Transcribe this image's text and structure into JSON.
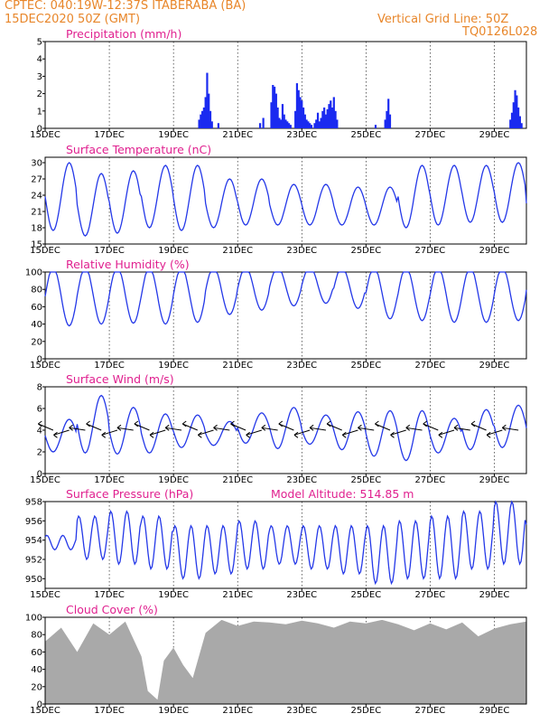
{
  "header": {
    "line1_left": "CPTEC:   040:19W-12:37S   ITABERABA (BA)",
    "line2_left": "15DEC2020  50Z (GMT)",
    "line2_right": "Vertical Grid Line: 50Z",
    "line3_right": "TQ0126L028"
  },
  "colors": {
    "series": "#2438e8",
    "precip": "#1a2af0",
    "cloud": "#a9a9a9",
    "title": "#e0208f",
    "header": "#e8862a"
  },
  "chart_data": [
    {
      "type": "bar",
      "id": "precip",
      "title": "Precipitation (mm/h)",
      "x_labels": [
        "15DEC",
        "17DEC",
        "19DEC",
        "21DEC",
        "23DEC",
        "25DEC",
        "27DEC",
        "29DEC"
      ],
      "x_range_days": [
        0,
        15
      ],
      "ylim": [
        0,
        5
      ],
      "yticks": [
        0,
        1,
        2,
        3,
        4,
        5
      ],
      "x": [
        4.8,
        4.85,
        4.9,
        4.95,
        5.0,
        5.05,
        5.1,
        5.15,
        5.2,
        5.4,
        6.7,
        6.8,
        7.05,
        7.1,
        7.15,
        7.2,
        7.25,
        7.3,
        7.35,
        7.4,
        7.45,
        7.5,
        7.55,
        7.6,
        7.65,
        7.8,
        7.85,
        7.9,
        7.95,
        8.0,
        8.05,
        8.1,
        8.15,
        8.2,
        8.25,
        8.3,
        8.4,
        8.45,
        8.5,
        8.55,
        8.6,
        8.65,
        8.7,
        8.75,
        8.8,
        8.85,
        8.9,
        8.95,
        9.0,
        9.05,
        9.1,
        10.3,
        10.6,
        10.65,
        10.7,
        10.75,
        14.5,
        14.55,
        14.6,
        14.65,
        14.7,
        14.75,
        14.8,
        14.85
      ],
      "values": [
        0.5,
        0.8,
        1.0,
        1.2,
        1.8,
        3.2,
        2.0,
        1.0,
        0.4,
        0.3,
        0.3,
        0.6,
        1.5,
        2.5,
        2.4,
        2.0,
        1.2,
        0.6,
        0.5,
        1.4,
        0.8,
        0.5,
        0.4,
        0.3,
        0.2,
        1.0,
        2.6,
        2.2,
        1.8,
        1.6,
        1.2,
        0.8,
        0.5,
        0.4,
        0.3,
        0.2,
        0.3,
        0.5,
        0.9,
        0.4,
        0.6,
        1.0,
        1.2,
        0.8,
        1.1,
        1.4,
        1.6,
        1.2,
        1.8,
        1.0,
        0.5,
        0.2,
        0.5,
        1.0,
        1.7,
        0.8,
        0.5,
        0.9,
        1.5,
        2.2,
        1.9,
        1.2,
        0.7,
        0.3
      ]
    },
    {
      "type": "line",
      "id": "temp",
      "title": "Surface Temperature (nC)",
      "x_labels": [
        "15DEC",
        "17DEC",
        "19DEC",
        "21DEC",
        "23DEC",
        "25DEC",
        "27DEC",
        "29DEC"
      ],
      "x_range_days": [
        0,
        15
      ],
      "ylim": [
        15,
        31
      ],
      "yticks": [
        15,
        18,
        21,
        24,
        27,
        30
      ],
      "y_max": [
        30,
        28,
        28.5,
        29.5,
        29.5,
        27,
        27,
        26,
        26,
        25.5,
        25.5,
        29.5,
        29.5,
        29.5,
        30,
        26
      ],
      "y_min": [
        17.5,
        16.5,
        17,
        18,
        17.5,
        18,
        18.5,
        18.5,
        18.5,
        18.5,
        18.5,
        18,
        18.5,
        19,
        19,
        19
      ]
    },
    {
      "type": "line",
      "id": "rh",
      "title": "Relative Humidity (%)",
      "x_labels": [
        "15DEC",
        "17DEC",
        "19DEC",
        "21DEC",
        "23DEC",
        "25DEC",
        "27DEC",
        "29DEC"
      ],
      "x_range_days": [
        0,
        15
      ],
      "ylim": [
        0,
        100
      ],
      "yticks": [
        0,
        20,
        40,
        60,
        80,
        100
      ],
      "y_max": [
        100,
        100,
        100,
        100,
        100,
        100,
        100,
        100,
        100,
        100,
        100,
        100,
        100,
        100,
        100,
        85
      ],
      "y_min": [
        32,
        34,
        35,
        34,
        36,
        45,
        50,
        55,
        58,
        52,
        40,
        38,
        36,
        36,
        38,
        62
      ]
    },
    {
      "type": "line",
      "id": "wind",
      "title": "Surface Wind (m/s)",
      "x_labels": [
        "15DEC",
        "17DEC",
        "19DEC",
        "21DEC",
        "23DEC",
        "25DEC",
        "27DEC",
        "29DEC"
      ],
      "x_range_days": [
        0,
        15
      ],
      "ylim": [
        0,
        8
      ],
      "yticks": [
        0,
        2,
        4,
        6,
        8
      ],
      "y_max": [
        5.0,
        7.2,
        6.1,
        5.5,
        5.4,
        4.8,
        5.6,
        6.1,
        5.4,
        5.7,
        5.8,
        5.8,
        5.1,
        5.9,
        6.3,
        4.8
      ],
      "y_min": [
        2.0,
        1.9,
        1.8,
        1.9,
        2.4,
        2.6,
        2.8,
        2.3,
        2.7,
        2.2,
        1.6,
        1.2,
        1.9,
        2.2,
        2.4,
        3.6
      ]
    },
    {
      "type": "line",
      "id": "pres",
      "title": "Surface Pressure (hPa)",
      "annotation": "Model Altitude: 514.85 m",
      "x_labels": [
        "15DEC",
        "17DEC",
        "19DEC",
        "21DEC",
        "23DEC",
        "25DEC",
        "27DEC",
        "29DEC"
      ],
      "x_range_days": [
        0,
        15
      ],
      "ylim": [
        949,
        958
      ],
      "yticks": [
        950,
        952,
        954,
        956,
        958
      ],
      "y_max": [
        954.5,
        956.5,
        957.0,
        956.5,
        955.5,
        955.5,
        956.0,
        955.5,
        955.5,
        955.5,
        955.5,
        956.0,
        956.5,
        957.0,
        958.0,
        956.0
      ],
      "y_min": [
        953.0,
        952.0,
        951.5,
        951.0,
        950.0,
        950.5,
        951.0,
        951.5,
        951.0,
        950.5,
        949.5,
        950.0,
        950.0,
        951.0,
        951.5,
        952.0
      ]
    },
    {
      "type": "area",
      "id": "cloud",
      "title": "Cloud Cover (%)",
      "x_labels": [
        "15DEC",
        "17DEC",
        "19DEC",
        "21DEC",
        "23DEC",
        "25DEC",
        "27DEC",
        "29DEC"
      ],
      "x_range_days": [
        0,
        15
      ],
      "ylim": [
        0,
        100
      ],
      "yticks": [
        0,
        20,
        40,
        60,
        80,
        100
      ],
      "x": [
        0,
        0.5,
        1,
        1.5,
        2,
        2.5,
        3,
        3.2,
        3.5,
        3.7,
        4,
        4.3,
        4.6,
        5,
        5.5,
        6,
        6.5,
        7,
        7.5,
        8,
        8.5,
        9,
        9.5,
        10,
        10.5,
        11,
        11.5,
        12,
        12.5,
        13,
        13.5,
        14,
        14.5,
        15
      ],
      "values": [
        72,
        88,
        60,
        93,
        80,
        95,
        55,
        15,
        5,
        50,
        65,
        45,
        30,
        82,
        97,
        90,
        95,
        94,
        92,
        96,
        93,
        88,
        95,
        93,
        97,
        92,
        85,
        93,
        86,
        94,
        78,
        87,
        92,
        95
      ]
    }
  ]
}
